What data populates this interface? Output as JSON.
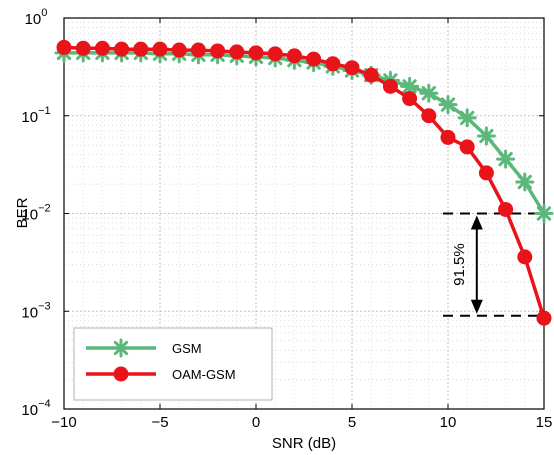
{
  "chart_data": {
    "type": "line",
    "title": "",
    "xlabel": "SNR (dB)",
    "ylabel": "BER",
    "xlim": [
      -10,
      15
    ],
    "ylim": [
      0.0001,
      1
    ],
    "yscale": "log",
    "grid": true,
    "legend_position": "bottom-left",
    "x_ticks": [
      {
        "value": -10,
        "label": "−10"
      },
      {
        "value": -5,
        "label": "−5"
      },
      {
        "value": 0,
        "label": "0"
      },
      {
        "value": 5,
        "label": "5"
      },
      {
        "value": 10,
        "label": "10"
      },
      {
        "value": 15,
        "label": "15"
      }
    ],
    "y_ticks": [
      {
        "value": 1,
        "base": "10",
        "exp": "0"
      },
      {
        "value": 0.1,
        "base": "10",
        "exp": "−1"
      },
      {
        "value": 0.01,
        "base": "10",
        "exp": "−2"
      },
      {
        "value": 0.001,
        "base": "10",
        "exp": "−3"
      },
      {
        "value": 0.0001,
        "base": "10",
        "exp": "−4"
      }
    ],
    "x": [
      -10,
      -9,
      -8,
      -7,
      -6,
      -5,
      -4,
      -3,
      -2,
      -1,
      0,
      1,
      2,
      3,
      4,
      5,
      6,
      7,
      8,
      9,
      10,
      11,
      12,
      13,
      14,
      15
    ],
    "series": [
      {
        "name": "GSM",
        "color": "#5cb87a",
        "marker": "asterisk",
        "values": [
          0.44,
          0.44,
          0.44,
          0.44,
          0.44,
          0.43,
          0.43,
          0.42,
          0.42,
          0.41,
          0.4,
          0.39,
          0.37,
          0.35,
          0.32,
          0.29,
          0.26,
          0.23,
          0.2,
          0.17,
          0.13,
          0.095,
          0.062,
          0.036,
          0.021,
          0.01
        ]
      },
      {
        "name": "OAM-GSM",
        "color": "#e8141a",
        "marker": "circle",
        "values": [
          0.5,
          0.49,
          0.49,
          0.48,
          0.48,
          0.48,
          0.47,
          0.47,
          0.46,
          0.45,
          0.44,
          0.43,
          0.41,
          0.38,
          0.34,
          0.31,
          0.26,
          0.2,
          0.15,
          0.1,
          0.06,
          0.048,
          0.026,
          0.011,
          0.0036,
          0.00085
        ]
      }
    ],
    "annotation": {
      "text": "91.5%",
      "x": 11.5,
      "y_top": 0.01,
      "y_bottom": 0.0009
    }
  }
}
